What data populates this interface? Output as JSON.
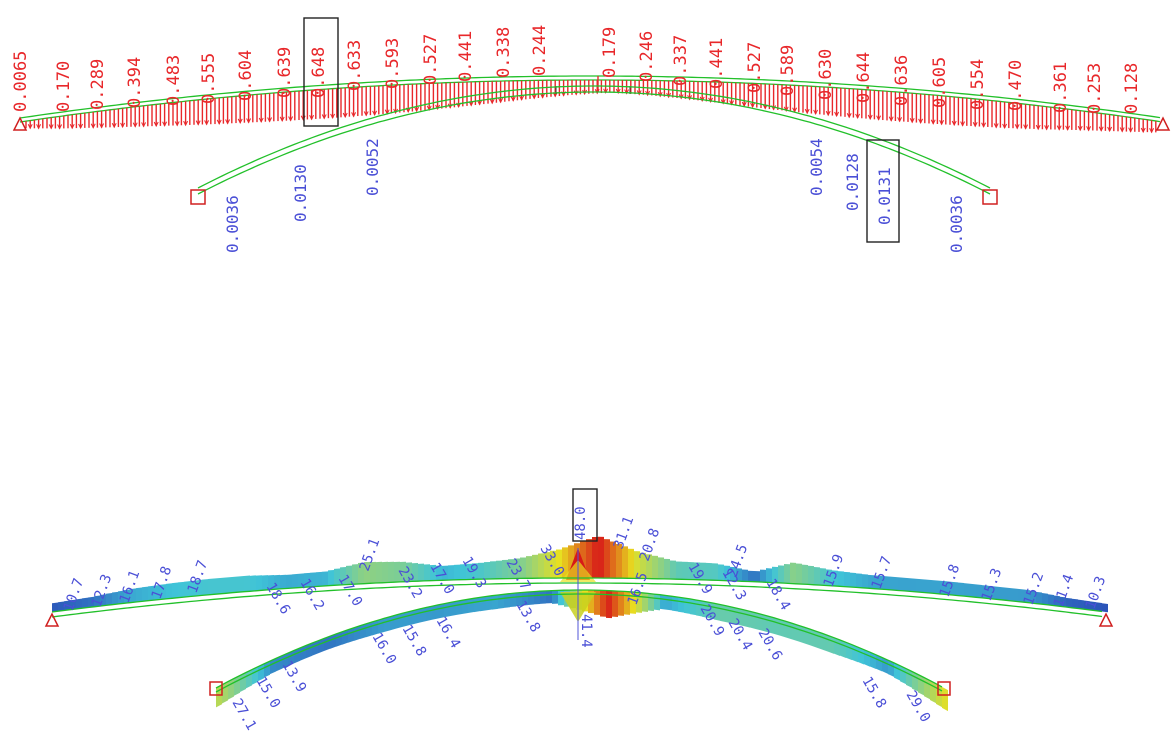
{
  "top_diagram": {
    "deck_labels": [
      "0.0065",
      "0.170",
      "0.289",
      "0.394",
      "0.483",
      "0.555",
      "0.604",
      "0.639",
      "0.648",
      "0.633",
      "0.593",
      "0.527",
      "0.441",
      "0.338",
      "0.244",
      "0.179",
      "0.246",
      "0.337",
      "0.441",
      "0.527",
      "0.589",
      "0.630",
      "0.644",
      "0.636",
      "0.605",
      "0.554",
      "0.470",
      "0.361",
      "0.253",
      "0.128"
    ],
    "deck_highlight_index": 8,
    "arch_left_labels": [
      "0.0036",
      "0.0130",
      "0.0052"
    ],
    "arch_right_labels": [
      "0.0054",
      "0.0128",
      "0.0131",
      "0.0036"
    ],
    "arch_highlight_label": "0.0131",
    "colors": {
      "deck_values": "#e8272a",
      "arch_values": "#4a4fd6",
      "outline": "#22c02a",
      "support": "#d02020"
    }
  },
  "bottom_diagram": {
    "deck_labels": [
      "10.7",
      "12.3",
      "16.1",
      "17.8",
      "18.7",
      "18.6",
      "16.2",
      "17.0",
      "25.1",
      "23.2",
      "17.0",
      "19.3",
      "23.7",
      "33.0",
      "48.0",
      "31.1",
      "20.8",
      "19.9",
      "12.3",
      "24.5",
      "18.4",
      "15.9",
      "15.7",
      "15.8",
      "15.3",
      "15.2",
      "11.4",
      "10.3"
    ],
    "deck_highlight_label": "48.0",
    "arch_labels": [
      "27.1",
      "15.0",
      "13.9",
      "16.0",
      "15.8",
      "16.4",
      "13.8",
      "41.4",
      "16.5",
      "20.9",
      "20.4",
      "20.6",
      "15.8",
      "29.0"
    ],
    "colors": {
      "labels": "#4a4fd6",
      "low": "#2a4fb8",
      "mid": "#3fc4d8",
      "high": "#d81818",
      "outline": "#22c02a"
    }
  }
}
